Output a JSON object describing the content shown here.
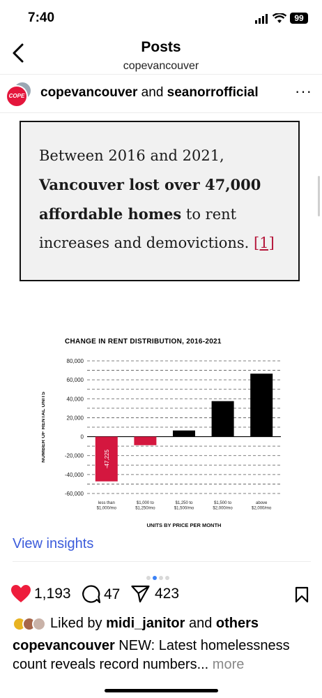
{
  "status_bar": {
    "time": "7:40",
    "battery": "99"
  },
  "nav": {
    "title": "Posts",
    "subtitle": "copevancouver"
  },
  "post": {
    "avatar_text": "COPE",
    "author": "copevancouver",
    "joiner": " and ",
    "coauthor": "seanorrofficial",
    "more": "···"
  },
  "quote": {
    "line1": "Between 2016 and 2021,",
    "bold": "Vancouver lost over 47,000 affordable homes",
    "rest": " to rent increases and demovictions. ",
    "cite": "[1]"
  },
  "chart_data": {
    "type": "bar",
    "title": "CHANGE IN RENT DISTRIBUTION, 2016-2021",
    "xlabel": "UNITS BY PRICE PER MONTH",
    "ylabel": "NUMBER OF RENTAL UNITS",
    "categories": [
      [
        "less than",
        "$1,000/mo"
      ],
      [
        "$1,000 to",
        "$1,250/mo"
      ],
      [
        "$1,250 to",
        "$1,500/mo"
      ],
      [
        "$1,500 to",
        "$2,000/mo"
      ],
      [
        "above",
        "$2,000/mo"
      ]
    ],
    "values": [
      -47225,
      -9000,
      6500,
      37500,
      66500
    ],
    "data_labels": [
      "-47,225",
      "",
      "",
      "",
      ""
    ],
    "colors": [
      "#d4173f",
      "#d4173f",
      "#000000",
      "#000000",
      "#000000"
    ],
    "ylim": [
      -60000,
      80000
    ],
    "yticks": [
      80000,
      60000,
      40000,
      20000,
      0,
      -20000,
      -40000,
      -60000
    ],
    "ytick_labels": [
      "80,000",
      "60,000",
      "40,000",
      "20,000",
      "0",
      "-20,000",
      "-40,000",
      "-60,000"
    ],
    "grid": "dashed"
  },
  "view_insights": "View insights",
  "actions": {
    "likes": "1,193",
    "comments": "47",
    "shares": "423"
  },
  "liked_by": {
    "prefix": "Liked by ",
    "user": "midi_janitor",
    "middle": " and ",
    "others": "others"
  },
  "caption": {
    "author": "copevancouver",
    "text": " NEW: Latest homelessness count reveals record numbers...",
    "more": " more"
  }
}
